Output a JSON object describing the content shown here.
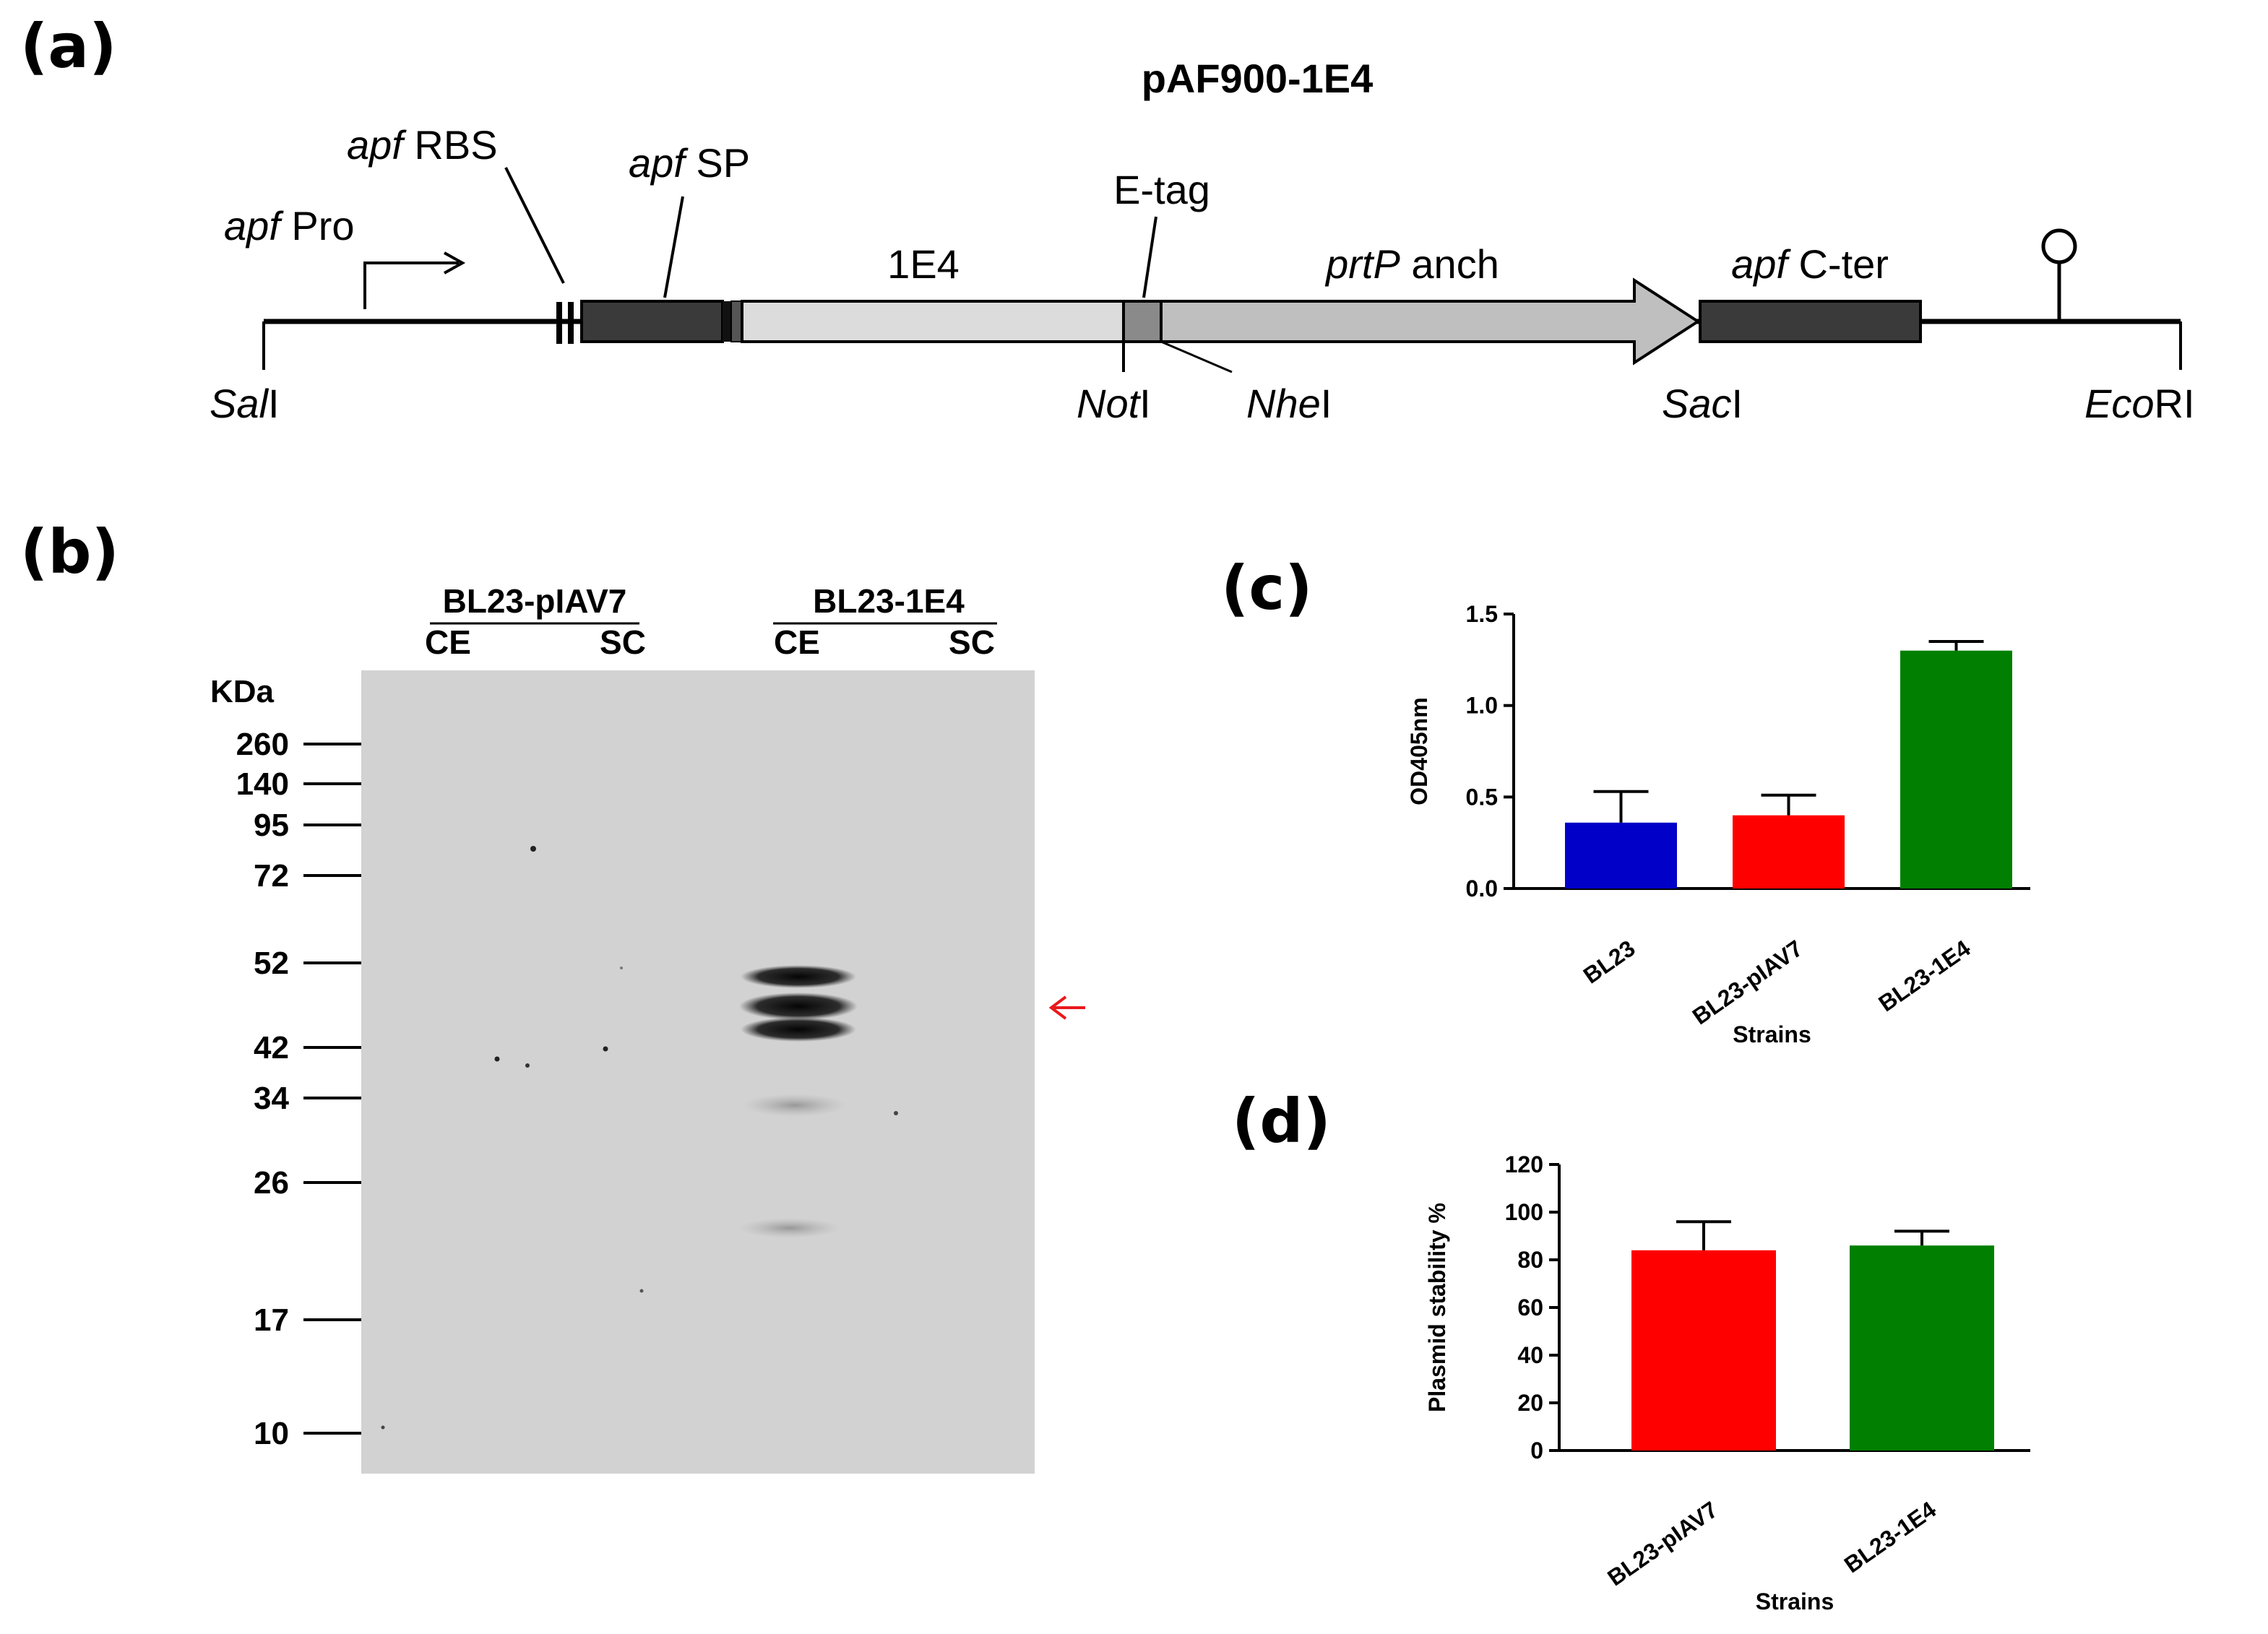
{
  "panels": {
    "a": "(a)",
    "b": "(b)",
    "c": "(c)",
    "d": "(d)"
  },
  "construct": {
    "title": "pAF900-1E4",
    "labels": {
      "apf_pro_italic": "apf",
      "apf_pro_rest": " Pro",
      "apf_rbs_italic": "apf",
      "apf_rbs_rest": " RBS",
      "apf_sp_italic": "apf",
      "apf_sp_rest": " SP",
      "insert": "1E4",
      "etag": "E-tag",
      "prtp_italic": "prtP",
      "prtp_rest": " anch",
      "apf_cter_italic": "apf",
      "apf_cter_rest": " C-ter"
    },
    "sites": {
      "sal_italic": "Sal",
      "sal_rest": "I",
      "not_italic": "Not",
      "not_rest": "I",
      "nhe_italic": "Nhe",
      "nhe_rest": "I",
      "sac_italic": "Sac",
      "sac_rest": "I",
      "eco_italic": "Eco",
      "eco_rest": "RI"
    },
    "colors": {
      "dark_segment": "#3a3a3a",
      "insert": "#dcdcdc",
      "etag": "#8a8a8a",
      "anchor": "#bfbfbf"
    }
  },
  "gel": {
    "group1": "BL23-pIAV7",
    "group2": "BL23-1E4",
    "lane_ce_1": "CE",
    "lane_sc_1": "SC",
    "lane_ce_2": "CE",
    "lane_sc_2": "SC",
    "unit": "KDa",
    "markers": [
      "260",
      "140",
      "95",
      "72",
      "52",
      "42",
      "34",
      "26",
      "17",
      "10"
    ],
    "arrow_color": "#e8191c"
  },
  "chart_data": [
    {
      "type": "bar",
      "panel": "c",
      "categories": [
        "BL23",
        "BL23-pIAV7",
        "BL23-1E4"
      ],
      "values": [
        0.36,
        0.4,
        1.3
      ],
      "errors": [
        0.17,
        0.11,
        0.05
      ],
      "colors": [
        "#0000c8",
        "#ff0000",
        "#007f00"
      ],
      "ylabel": "OD405nm",
      "xlabel": "Strains",
      "ylim": [
        0,
        1.5
      ],
      "yticks": [
        "0.0",
        "0.5",
        "1.0",
        "1.5"
      ]
    },
    {
      "type": "bar",
      "panel": "d",
      "categories": [
        "BL23-pIAV7",
        "BL23-1E4"
      ],
      "values": [
        84,
        86
      ],
      "errors": [
        12,
        6
      ],
      "colors": [
        "#ff0000",
        "#007f00"
      ],
      "ylabel": "Plasmid stability %",
      "xlabel": "Strains",
      "ylim": [
        0,
        120
      ],
      "yticks": [
        "0",
        "20",
        "40",
        "60",
        "80",
        "100",
        "120"
      ]
    }
  ]
}
